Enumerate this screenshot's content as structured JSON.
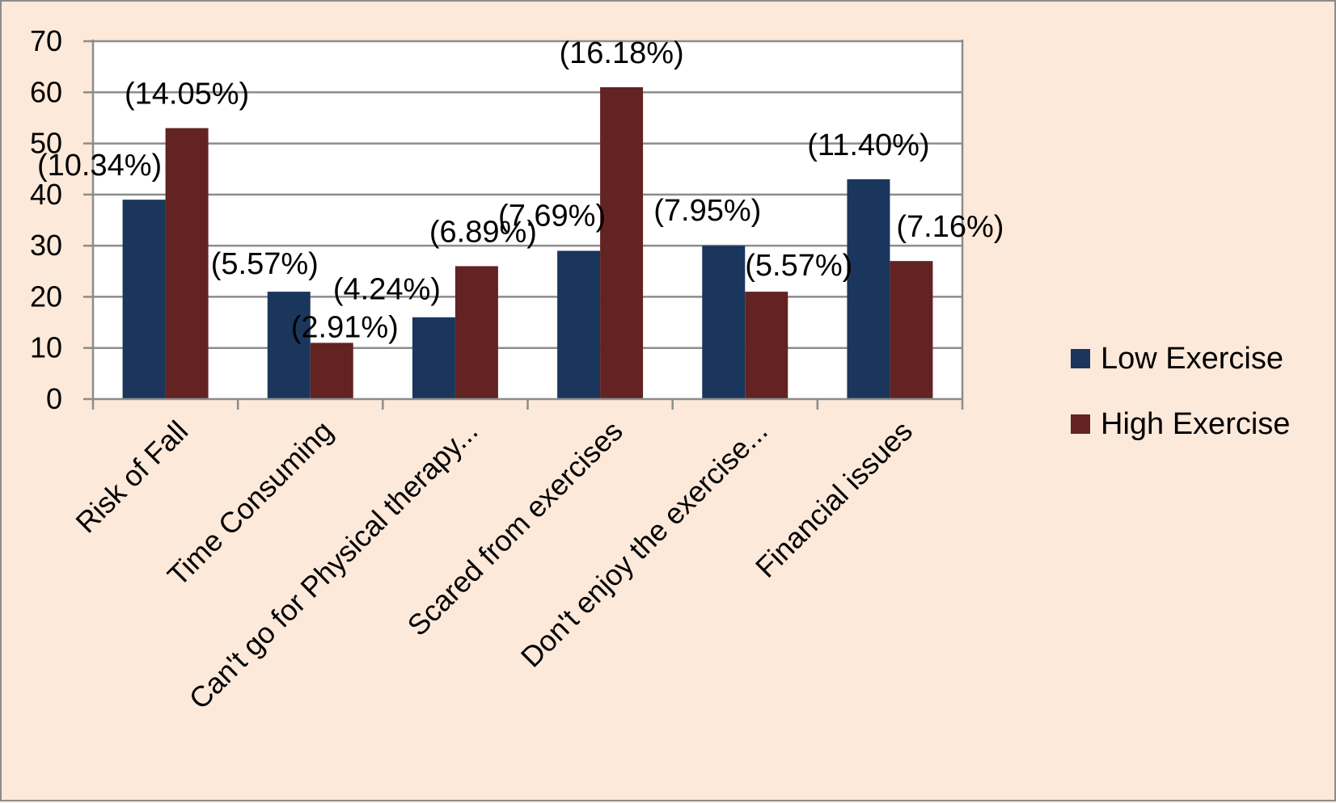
{
  "chart_data": {
    "type": "bar",
    "title": "",
    "xlabel": "",
    "ylabel": "",
    "ylim": [
      0,
      70
    ],
    "yticks": [
      "0",
      "10",
      "20",
      "30",
      "40",
      "50",
      "60",
      "70"
    ],
    "categories": [
      "Risk of Fall",
      "Time Consuming",
      "Can't go for Physical therapy...",
      "Scared from exercises",
      "Don't enjoy the exercise...",
      "Financial issues"
    ],
    "series": [
      {
        "name": "Low Exercise",
        "color": "#1b365d",
        "values": [
          39,
          21,
          16,
          29,
          30,
          43
        ],
        "labels": [
          "(10.34%)",
          "(5.57%)",
          "(4.24%)",
          "(7.69%)",
          "(7.95%)",
          "(11.40%)"
        ]
      },
      {
        "name": "High Exercise",
        "color": "#632323",
        "values": [
          53,
          11,
          26,
          61,
          21,
          27
        ],
        "labels": [
          "(14.05%)",
          "(2.91%)",
          "(6.89%)",
          "(16.18%)",
          "(5.57%)",
          "(7.16%)"
        ]
      }
    ],
    "grid": true,
    "legend_position": "right",
    "plot_background": "#ffffff",
    "frame_background": "#fce9da"
  }
}
